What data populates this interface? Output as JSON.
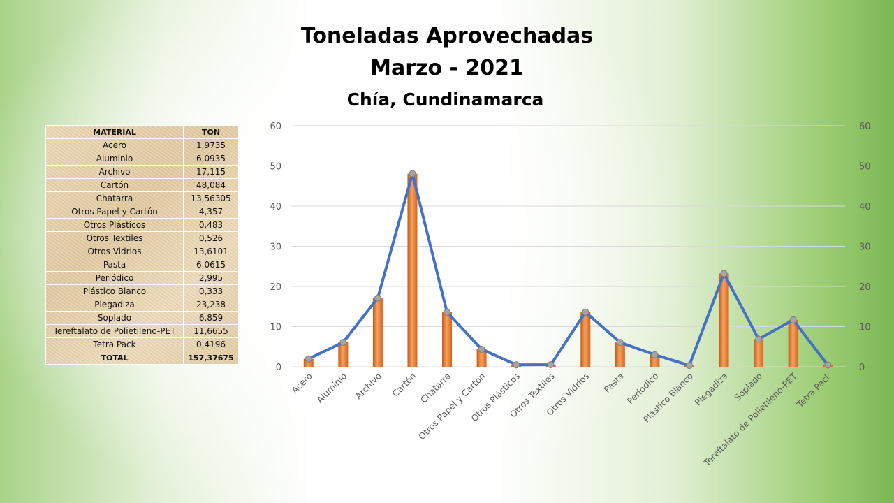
{
  "title": "Toneladas Aprovechadas",
  "subtitle": "Marzo - 2021",
  "location": "Chía, Cundinamarca",
  "table": {
    "headers": [
      "MATERIAL",
      "TON"
    ],
    "rows": [
      [
        "Acero",
        "1,9735"
      ],
      [
        "Aluminio",
        "6,0935"
      ],
      [
        "Archivo",
        "17,115"
      ],
      [
        "Cartón",
        "48,084"
      ],
      [
        "Chatarra",
        "13,56305"
      ],
      [
        "Otros Papel y Cartón",
        "4,357"
      ],
      [
        "Otros Plásticos",
        "0,483"
      ],
      [
        "Otros Textiles",
        "0,526"
      ],
      [
        "Otros Vidrios",
        "13,6101"
      ],
      [
        "Pasta",
        "6,0615"
      ],
      [
        "Periódico",
        "2,995"
      ],
      [
        "Plástico Blanco",
        "0,333"
      ],
      [
        "Plegadiza",
        "23,238"
      ],
      [
        "Soplado",
        "6,859"
      ],
      [
        "Tereftalato de Polietileno-PET",
        "11,6655"
      ],
      [
        "Tetra Pack",
        "0,4196"
      ]
    ],
    "total": [
      "TOTAL",
      "157,37675"
    ]
  },
  "chart_data": {
    "type": "bar",
    "categories": [
      "Acero",
      "Aluminio",
      "Archivo",
      "Cartón",
      "Chatarra",
      "Otros Papel y Cartón",
      "Otros Plásticos",
      "Otros Textiles",
      "Otros Vidrios",
      "Pasta",
      "Periódico",
      "Plástico Blanco",
      "Plegadiza",
      "Soplado",
      "Tereftalato de Polietileno-PET",
      "Tetra Pack"
    ],
    "series": [
      {
        "type": "bar",
        "color": "#ed7d31",
        "values": [
          1.9735,
          6.0935,
          17.115,
          48.084,
          13.56305,
          4.357,
          0.483,
          0.526,
          13.6101,
          6.0615,
          2.995,
          0.333,
          23.238,
          6.859,
          11.6655,
          0.4196
        ]
      },
      {
        "type": "line",
        "color": "#4472c4",
        "marker_color": "#a5a5a5",
        "values": [
          1.9735,
          6.0935,
          17.115,
          48.084,
          13.56305,
          4.357,
          0.483,
          0.526,
          13.6101,
          6.0615,
          2.995,
          0.333,
          23.238,
          6.859,
          11.6655,
          0.4196
        ]
      }
    ],
    "ylim": [
      0,
      60
    ],
    "yticks": [
      "0",
      "10",
      "20",
      "30",
      "40",
      "50",
      "60"
    ],
    "secondary_axis": true,
    "grid": true,
    "legend": "none"
  }
}
